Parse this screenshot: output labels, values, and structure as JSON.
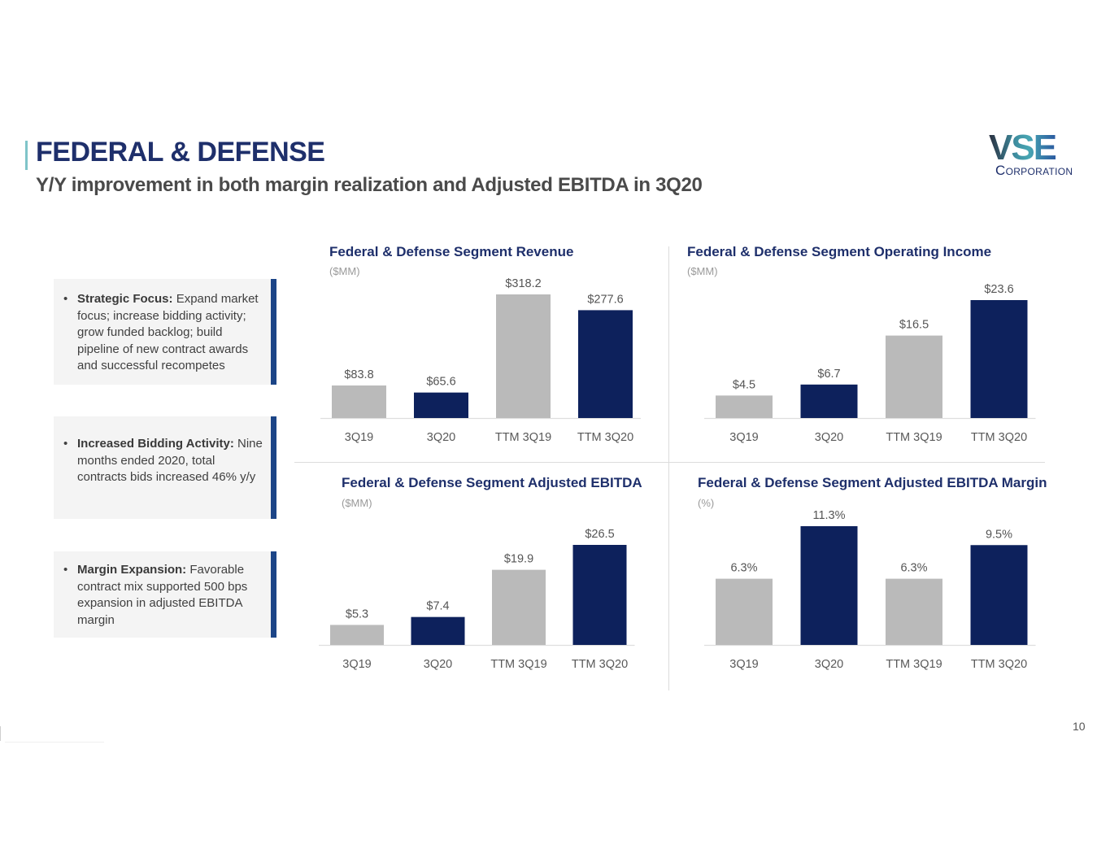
{
  "header": {
    "title": "FEDERAL & DEFENSE",
    "subtitle": "Y/Y improvement in both margin realization and Adjusted EBITDA in 3Q20"
  },
  "logo": {
    "mark": "VSE",
    "name": "Corporation"
  },
  "callouts": [
    {
      "bullet": "•",
      "label": "Strategic Focus:",
      "text": " Expand market focus; increase bidding activity; grow funded backlog; build pipeline of new contract awards and successful recompetes"
    },
    {
      "bullet": "•",
      "label": "Increased Bidding Activity:",
      "text": " Nine months ended 2020, total contracts bids increased 46% y/y"
    },
    {
      "bullet": "•",
      "label": "Margin Expansion:",
      "text": " Favorable contract mix supported 500 bps expansion in adjusted EBITDA margin"
    }
  ],
  "colors": {
    "gray_bar": "#bababa",
    "navy_bar": "#0d215c",
    "title": "#1e2f6b",
    "callout_edge": "#1c4587"
  },
  "page_number": "10",
  "chart_data": [
    {
      "id": "revenue",
      "type": "bar",
      "title": "Federal & Defense Segment Revenue",
      "unit": "($MM)",
      "categories": [
        "3Q19",
        "3Q20",
        "TTM 3Q19",
        "TTM 3Q20"
      ],
      "values": [
        83.8,
        65.6,
        318.2,
        277.6
      ],
      "labels": [
        "$83.8",
        "$65.6",
        "$318.2",
        "$277.6"
      ],
      "bar_colors": [
        "gray",
        "navy",
        "gray",
        "navy"
      ],
      "ylim": [
        0,
        318.2
      ],
      "grid": false
    },
    {
      "id": "operating-income",
      "type": "bar",
      "title": "Federal & Defense Segment Operating Income",
      "unit": "($MM)",
      "categories": [
        "3Q19",
        "3Q20",
        "TTM 3Q19",
        "TTM 3Q20"
      ],
      "values": [
        4.5,
        6.7,
        16.5,
        23.6
      ],
      "labels": [
        "$4.5",
        "$6.7",
        "$16.5",
        "$23.6"
      ],
      "bar_colors": [
        "gray",
        "navy",
        "gray",
        "navy"
      ],
      "ylim": [
        0,
        23.6
      ],
      "grid": false
    },
    {
      "id": "adjusted-ebitda",
      "type": "bar",
      "title": "Federal & Defense Segment Adjusted EBITDA",
      "unit": "($MM)",
      "categories": [
        "3Q19",
        "3Q20",
        "TTM 3Q19",
        "TTM 3Q20"
      ],
      "values": [
        5.3,
        7.4,
        19.9,
        26.5
      ],
      "labels": [
        "$5.3",
        "$7.4",
        "$19.9",
        "$26.5"
      ],
      "bar_colors": [
        "gray",
        "navy",
        "gray",
        "navy"
      ],
      "ylim": [
        0,
        26.5
      ],
      "grid": false
    },
    {
      "id": "adjusted-ebitda-margin",
      "type": "bar",
      "title": "Federal & Defense Segment Adjusted EBITDA Margin",
      "unit": "(%)",
      "categories": [
        "3Q19",
        "3Q20",
        "TTM 3Q19",
        "TTM 3Q20"
      ],
      "values": [
        6.3,
        11.3,
        6.3,
        9.5
      ],
      "labels": [
        "6.3%",
        "11.3%",
        "6.3%",
        "9.5%"
      ],
      "bar_colors": [
        "gray",
        "navy",
        "gray",
        "navy"
      ],
      "ylim": [
        0,
        11.3
      ],
      "grid": false
    }
  ]
}
